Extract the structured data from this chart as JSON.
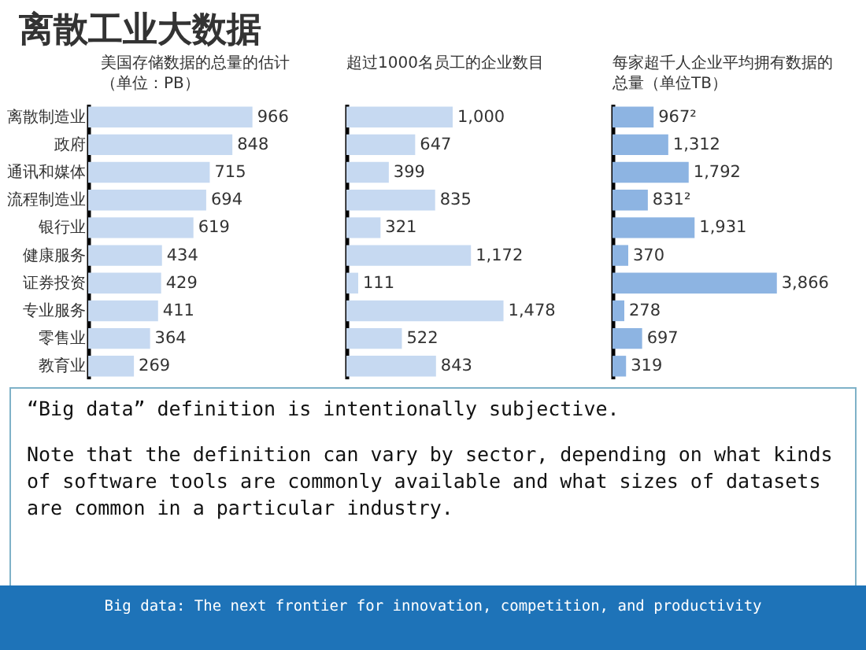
{
  "chart_data": [
    {
      "type": "bar",
      "orientation": "horizontal",
      "title": "离散工业大数据",
      "subtitle": "美国存储数据的总量的估计（单位：PB）",
      "categories": [
        "离散制造业",
        "政府",
        "通讯和媒体",
        "流程制造业",
        "银行业",
        "健康服务",
        "证券投资",
        "专业服务",
        "零售业",
        "教育业"
      ],
      "values": [
        966,
        848,
        715,
        694,
        619,
        434,
        429,
        411,
        364,
        269
      ],
      "color": "#c6d9f1",
      "data_labels": true,
      "tick_labels": "y",
      "annotations": [
        "“Big data” definition is intentionally subjective.",
        "Note that the definition can vary by sector, depending on what kinds of software tools are commonly available and what sizes of datasets are common in a particular industry.",
        "Big data: The next frontier for innovation, competition, and productivity"
      ]
    },
    {
      "type": "bar",
      "orientation": "horizontal",
      "subtitle": "超过1000名员工的企业数目",
      "categories": [
        null,
        null,
        null,
        null,
        null,
        null,
        null,
        null,
        null,
        null
      ],
      "values": [
        1000,
        647,
        399,
        835,
        321,
        1172,
        111,
        1478,
        522,
        843
      ],
      "color": "#c6d9f1",
      "value_labels": [
        "1,000",
        "647",
        "399",
        "835",
        "321",
        "1,172",
        "111",
        "1,478",
        "522",
        "843"
      ],
      "tick_labels": false
    },
    {
      "type": "bar",
      "orientation": "horizontal",
      "subtitle": "每家超千人企业平均拥有数据的总量（单位TB）",
      "categories": [
        null,
        null,
        null,
        null,
        null,
        null,
        null,
        null,
        null,
        null
      ],
      "values": [
        967,
        1312,
        1792,
        831,
        1931,
        370,
        3866,
        278,
        697,
        319
      ],
      "color": "#8db4e2",
      "value_labels": [
        "967²",
        "1,312",
        "1,792",
        "831²",
        "1,931",
        "370",
        "3,866",
        "278",
        "697",
        "319"
      ],
      "tick_labels": false
    }
  ]
}
